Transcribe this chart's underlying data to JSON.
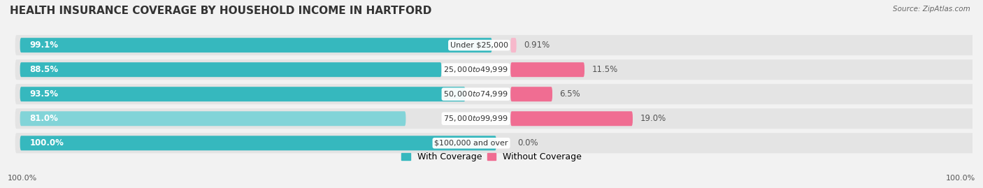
{
  "title": "HEALTH INSURANCE COVERAGE BY HOUSEHOLD INCOME IN HARTFORD",
  "source": "Source: ZipAtlas.com",
  "categories": [
    "Under $25,000",
    "$25,000 to $49,999",
    "$50,000 to $74,999",
    "$75,000 to $99,999",
    "$100,000 and over"
  ],
  "with_coverage": [
    99.1,
    88.5,
    93.5,
    81.0,
    100.0
  ],
  "without_coverage": [
    0.91,
    11.5,
    6.5,
    19.0,
    0.0
  ],
  "with_colors": [
    "#36b8be",
    "#36b8be",
    "#36b8be",
    "#82d4d8",
    "#36b8be"
  ],
  "without_colors": [
    "#f7b8cb",
    "#f06d92",
    "#f06d92",
    "#f06d92",
    "#f7b8cb"
  ],
  "bg_color": "#f2f2f2",
  "row_bg_color": "#e4e4e4",
  "label_bg_color": "#ffffff",
  "title_fontsize": 11,
  "bar_label_fontsize": 8.5,
  "cat_label_fontsize": 8.0,
  "annotation_fontsize": 8.5,
  "legend_fontsize": 9,
  "axis_label_fontsize": 8
}
